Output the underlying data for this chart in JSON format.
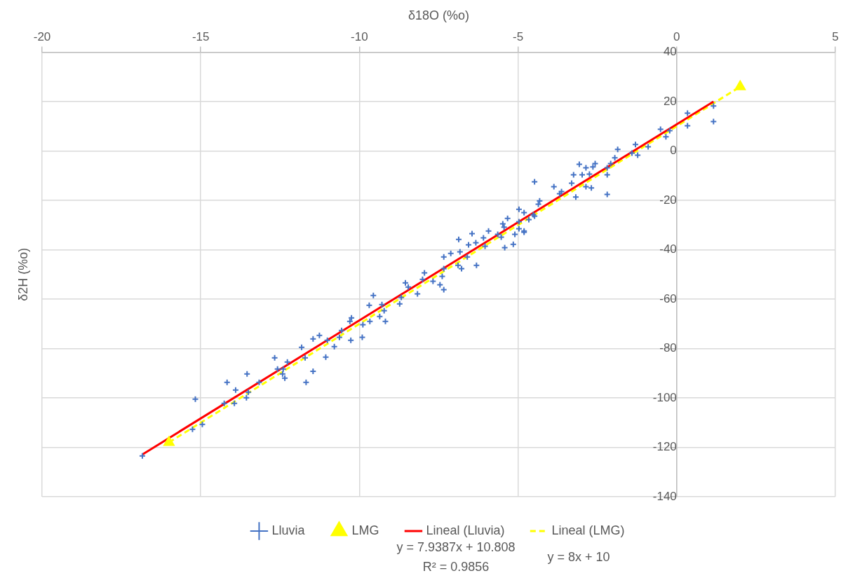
{
  "chart_data": {
    "type": "scatter",
    "xlabel": "δ18O (%o)",
    "ylabel": "δ2H (%o)",
    "xlim": [
      -20,
      5
    ],
    "xticks": [
      -20,
      -15,
      -10,
      -5,
      0,
      5
    ],
    "ylim": [
      -140,
      40
    ],
    "yticks": [
      -140,
      -120,
      -100,
      -80,
      -60,
      -40,
      -20,
      0,
      20,
      40
    ],
    "grid": true,
    "legend": "bottom",
    "series": [
      {
        "name": "Lluvia",
        "type": "scatter",
        "marker": "cross",
        "color": "#4472c4",
        "x": [
          -16.84,
          -15.17,
          -14.95,
          -15.26,
          -14.17,
          -13.9,
          -13.54,
          -14.26,
          -13.94,
          -13.56,
          -13.5,
          -13.16,
          -12.67,
          -12.58,
          -12.4,
          -12.42,
          -12.35,
          -12.27,
          -11.68,
          -11.46,
          -11.82,
          -11.71,
          -11.06,
          -11.46,
          -11.26,
          -11.01,
          -10.79,
          -10.63,
          -10.27,
          -10.25,
          -10.3,
          -10.56,
          -9.89,
          -9.67,
          -9.91,
          -9.56,
          -9.69,
          -9.29,
          -9.36,
          -9.18,
          -9.22,
          -8.73,
          -8.68,
          -8.55,
          -8.46,
          -8.17,
          -7.95,
          -8.01,
          -7.68,
          -7.46,
          -7.34,
          -7.39,
          -7.34,
          -7.12,
          -7.34,
          -6.87,
          -6.89,
          -6.78,
          -6.83,
          -6.56,
          -6.6,
          -6.31,
          -6.33,
          -6.04,
          -6.09,
          -5.93,
          -5.64,
          -5.53,
          -5.42,
          -5.44,
          -5.15,
          -5.1,
          -5.33,
          -4.97,
          -4.81,
          -6.45,
          -4.48,
          -3.87,
          -3.18,
          -2.19,
          -1.86,
          -3.07,
          -2.86,
          -2.64,
          -2.57,
          -3.25,
          -2.98,
          -3.31,
          -2.86,
          -2.69,
          -2.75,
          -2.19,
          -2.19,
          -2.08,
          -3.63,
          -3.69,
          -4.32,
          -4.36,
          -4.97,
          -4.81,
          -4.48,
          -4.81,
          -5.48,
          -4.97,
          -4.66,
          -4.52,
          0.34,
          0.34,
          1.16,
          1.16,
          -0.51,
          -0.34,
          -0.22,
          -0.9,
          -1.3,
          -1.23,
          -1.41,
          -1.95
        ],
        "values": [
          -123.5,
          -100.5,
          -110.7,
          -112.7,
          -93.7,
          -96.8,
          -90.3,
          -102.2,
          -102.2,
          -99.9,
          -97.7,
          -93.7,
          -83.8,
          -88.3,
          -88.3,
          -90.3,
          -92,
          -85.5,
          -93.7,
          -89.2,
          -79.5,
          -83.8,
          -83.5,
          -76.1,
          -74.7,
          -76.7,
          -79.2,
          -75.5,
          -76.7,
          -67.6,
          -69,
          -72.7,
          -70.4,
          -69,
          -75.5,
          -58.5,
          -62.5,
          -62.2,
          -67,
          -69,
          -64.7,
          -61.9,
          -59.3,
          -53.4,
          -55.1,
          -57.9,
          -49.4,
          -52,
          -52.8,
          -54.2,
          -56.2,
          -50.8,
          -47.7,
          -41.5,
          -42.9,
          -35.8,
          -46.3,
          -47.7,
          -40.9,
          -38,
          -42.9,
          -46.3,
          -37.2,
          -38.6,
          -35.2,
          -32.4,
          -33.8,
          -34.9,
          -39.2,
          -30.9,
          -37.8,
          -33.8,
          -27.3,
          -31.5,
          -32.9,
          -33.5,
          -12.5,
          -14.5,
          -18.7,
          -17.6,
          0.6,
          -5.4,
          -6.8,
          -6.5,
          -5.1,
          -9.7,
          -9.7,
          -13.1,
          -14.5,
          -15,
          -9.4,
          -9.7,
          -6.8,
          -5.1,
          -16.5,
          -17.3,
          -20.2,
          -21.6,
          -23.6,
          -25,
          -26.4,
          -32.4,
          -29.5,
          -28.7,
          -27.8,
          -25.8,
          15.3,
          10.2,
          18.2,
          11.9,
          8.8,
          5.7,
          8.2,
          1.7,
          2.6,
          -1.7,
          -0.9,
          -2.8
        ]
      },
      {
        "name": "LMG",
        "type": "scatter",
        "marker": "triangle",
        "color": "#ffff00",
        "x": [
          -16,
          2
        ],
        "values": [
          -118,
          26
        ]
      },
      {
        "name": "Lineal (Lluvia)",
        "type": "line",
        "marker": "none",
        "line_style": "solid",
        "color": "#ff0000",
        "x": [
          -16.84,
          1.16
        ],
        "values": [
          -122.9,
          20
        ]
      },
      {
        "name": "Lineal (LMG)",
        "type": "line",
        "marker": "none",
        "line_style": "dashed",
        "color": "#ffff00",
        "x": [
          -16,
          2
        ],
        "values": [
          -118,
          26
        ]
      }
    ],
    "annotations": [
      "y = 7.9387x + 10.808",
      "R² = 0.9856",
      "y = 8x + 10"
    ]
  }
}
